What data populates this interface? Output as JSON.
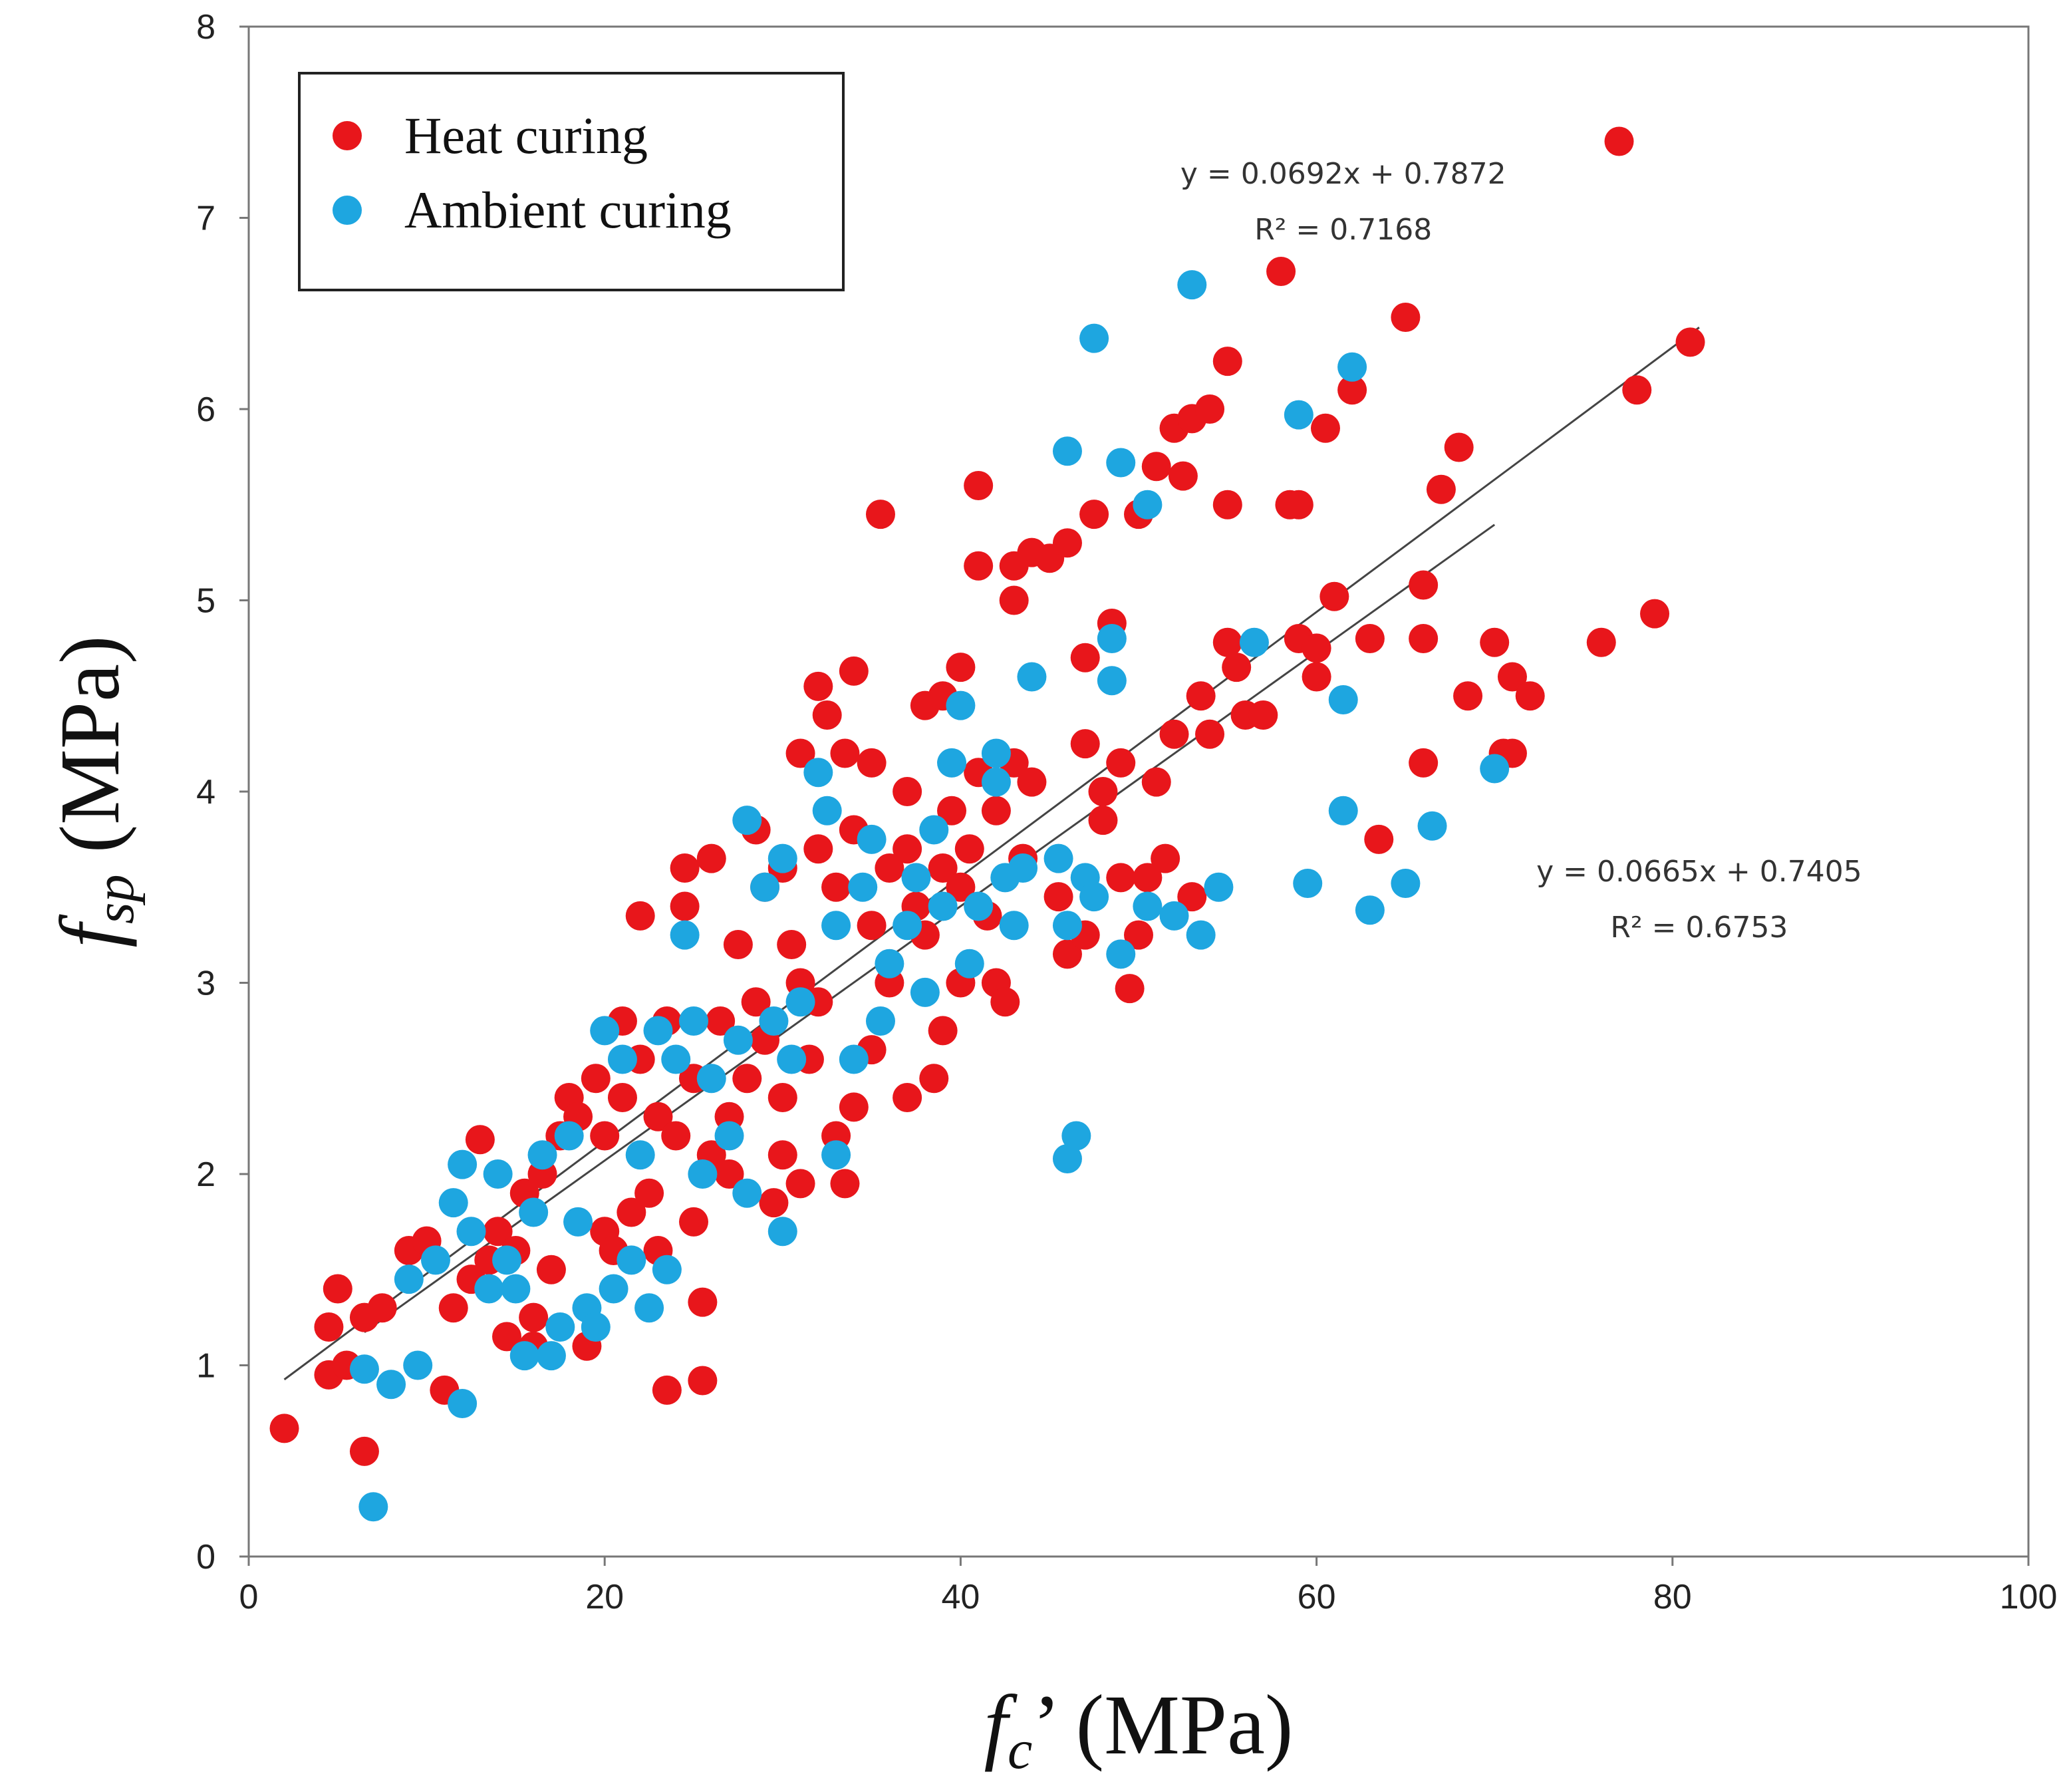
{
  "chart_data": {
    "type": "scatter",
    "xlabel": {
      "symbol": "f",
      "subscript": "c",
      "suffix": "’ (MPa)"
    },
    "ylabel": {
      "symbol": "f",
      "subscript": "sp",
      "suffix": " (MPa)"
    },
    "xlim": [
      0,
      100
    ],
    "ylim": [
      0,
      8
    ],
    "xticks": [
      0,
      20,
      40,
      60,
      80,
      100
    ],
    "yticks": [
      0,
      1,
      2,
      3,
      4,
      5,
      6,
      7,
      8
    ],
    "legend": {
      "position": "top-left",
      "entries": [
        "Heat curing",
        "Ambient curing"
      ]
    },
    "series": [
      {
        "name": "Heat curing",
        "color": "#e8161b",
        "points": [
          [
            2.0,
            0.67
          ],
          [
            4.5,
            0.95
          ],
          [
            4.5,
            1.2
          ],
          [
            5.0,
            1.4
          ],
          [
            5.5,
            1.0
          ],
          [
            6.5,
            0.55
          ],
          [
            6.5,
            1.25
          ],
          [
            7.5,
            1.3
          ],
          [
            9,
            1.6
          ],
          [
            10,
            1.65
          ],
          [
            11,
            0.87
          ],
          [
            11.5,
            1.3
          ],
          [
            12.5,
            1.45
          ],
          [
            13,
            2.18
          ],
          [
            13.5,
            1.55
          ],
          [
            14,
            1.7
          ],
          [
            14.5,
            1.15
          ],
          [
            15,
            1.6
          ],
          [
            15.5,
            1.9
          ],
          [
            16,
            1.25
          ],
          [
            16,
            1.1
          ],
          [
            16.5,
            2.0
          ],
          [
            17,
            1.5
          ],
          [
            17.5,
            2.2
          ],
          [
            18,
            2.4
          ],
          [
            18.5,
            2.3
          ],
          [
            19,
            1.1
          ],
          [
            19.5,
            2.5
          ],
          [
            20,
            1.7
          ],
          [
            20,
            2.2
          ],
          [
            20.5,
            1.6
          ],
          [
            21,
            2.4
          ],
          [
            21,
            2.8
          ],
          [
            21.5,
            1.8
          ],
          [
            22,
            3.35
          ],
          [
            22,
            2.6
          ],
          [
            22.5,
            1.9
          ],
          [
            23,
            1.6
          ],
          [
            23,
            2.3
          ],
          [
            23.5,
            0.87
          ],
          [
            23.5,
            2.8
          ],
          [
            24,
            2.2
          ],
          [
            24.5,
            3.6
          ],
          [
            24.5,
            3.4
          ],
          [
            25,
            1.75
          ],
          [
            25,
            2.5
          ],
          [
            25.5,
            0.92
          ],
          [
            25.5,
            1.33
          ],
          [
            26,
            3.65
          ],
          [
            26,
            2.1
          ],
          [
            26.5,
            2.8
          ],
          [
            27,
            2.3
          ],
          [
            27,
            2.0
          ],
          [
            27.5,
            3.2
          ],
          [
            28,
            2.5
          ],
          [
            28.5,
            3.8
          ],
          [
            28.5,
            2.9
          ],
          [
            29,
            3.5
          ],
          [
            29,
            2.7
          ],
          [
            29.5,
            1.85
          ],
          [
            30,
            3.6
          ],
          [
            30,
            2.4
          ],
          [
            30,
            2.1
          ],
          [
            30.5,
            3.2
          ],
          [
            31,
            4.2
          ],
          [
            31,
            3.0
          ],
          [
            31,
            1.95
          ],
          [
            31.5,
            2.6
          ],
          [
            32,
            4.55
          ],
          [
            32,
            3.7
          ],
          [
            32,
            2.9
          ],
          [
            32.5,
            4.4
          ],
          [
            33,
            3.5
          ],
          [
            33,
            2.2
          ],
          [
            33.5,
            4.2
          ],
          [
            33.5,
            1.95
          ],
          [
            34,
            4.63
          ],
          [
            34,
            3.8
          ],
          [
            34,
            2.35
          ],
          [
            35,
            4.15
          ],
          [
            35,
            3.3
          ],
          [
            35,
            2.65
          ],
          [
            35.5,
            5.45
          ],
          [
            36,
            3.6
          ],
          [
            36,
            3.0
          ],
          [
            37,
            4.0
          ],
          [
            37,
            3.7
          ],
          [
            37,
            2.4
          ],
          [
            37.5,
            3.4
          ],
          [
            38,
            4.45
          ],
          [
            38,
            3.25
          ],
          [
            38.5,
            2.5
          ],
          [
            39,
            4.5
          ],
          [
            39,
            3.6
          ],
          [
            39,
            2.75
          ],
          [
            39.5,
            3.9
          ],
          [
            40,
            4.65
          ],
          [
            40,
            3.5
          ],
          [
            40,
            3.0
          ],
          [
            40.5,
            3.7
          ],
          [
            41,
            5.6
          ],
          [
            41,
            5.18
          ],
          [
            41,
            4.1
          ],
          [
            41.5,
            3.35
          ],
          [
            42,
            3.9
          ],
          [
            42,
            3.0
          ],
          [
            42.5,
            2.9
          ],
          [
            43,
            5.0
          ],
          [
            43,
            5.18
          ],
          [
            43,
            4.15
          ],
          [
            43.5,
            3.65
          ],
          [
            44,
            4.05
          ],
          [
            44,
            5.25
          ],
          [
            45,
            5.22
          ],
          [
            45.5,
            3.45
          ],
          [
            46,
            5.3
          ],
          [
            46,
            3.15
          ],
          [
            47,
            4.7
          ],
          [
            47,
            4.25
          ],
          [
            47,
            3.25
          ],
          [
            47.5,
            5.45
          ],
          [
            48,
            3.85
          ],
          [
            48,
            4.0
          ],
          [
            48.5,
            4.88
          ],
          [
            49,
            4.15
          ],
          [
            49,
            3.55
          ],
          [
            49.5,
            2.97
          ],
          [
            50,
            5.45
          ],
          [
            50,
            3.25
          ],
          [
            50.5,
            3.55
          ],
          [
            51,
            5.7
          ],
          [
            51,
            4.05
          ],
          [
            51.5,
            3.65
          ],
          [
            52,
            5.9
          ],
          [
            52,
            4.3
          ],
          [
            52.5,
            5.65
          ],
          [
            53,
            5.95
          ],
          [
            53,
            3.45
          ],
          [
            53.5,
            4.5
          ],
          [
            54,
            6.0
          ],
          [
            54,
            4.3
          ],
          [
            55,
            6.25
          ],
          [
            55,
            5.5
          ],
          [
            55,
            4.78
          ],
          [
            55.5,
            4.65
          ],
          [
            56,
            4.4
          ],
          [
            57,
            4.4
          ],
          [
            58,
            6.72
          ],
          [
            58.5,
            5.5
          ],
          [
            59,
            5.5
          ],
          [
            59,
            4.8
          ],
          [
            60,
            4.75
          ],
          [
            60,
            4.6
          ],
          [
            60.5,
            5.9
          ],
          [
            61,
            5.02
          ],
          [
            62,
            6.1
          ],
          [
            63,
            4.8
          ],
          [
            63.5,
            3.75
          ],
          [
            65,
            6.48
          ],
          [
            66,
            5.08
          ],
          [
            66,
            4.8
          ],
          [
            66,
            4.15
          ],
          [
            67,
            5.58
          ],
          [
            68,
            5.8
          ],
          [
            68.5,
            4.5
          ],
          [
            70,
            4.78
          ],
          [
            70.5,
            4.2
          ],
          [
            71,
            4.6
          ],
          [
            71,
            4.2
          ],
          [
            72,
            4.5
          ],
          [
            76,
            4.78
          ],
          [
            77,
            7.4
          ],
          [
            78,
            6.1
          ],
          [
            79,
            4.93
          ],
          [
            81,
            6.35
          ]
        ]
      },
      {
        "name": "Ambient curing",
        "color": "#1ea6e0",
        "points": [
          [
            6.5,
            0.98
          ],
          [
            7,
            0.26
          ],
          [
            8,
            0.9
          ],
          [
            9,
            1.45
          ],
          [
            9.5,
            1.0
          ],
          [
            10.5,
            1.55
          ],
          [
            11.5,
            1.85
          ],
          [
            12,
            2.05
          ],
          [
            12,
            0.8
          ],
          [
            12.5,
            1.7
          ],
          [
            13.5,
            1.4
          ],
          [
            14,
            2.0
          ],
          [
            14.5,
            1.55
          ],
          [
            15,
            1.4
          ],
          [
            15.5,
            1.05
          ],
          [
            16,
            1.8
          ],
          [
            16.5,
            2.1
          ],
          [
            17,
            1.05
          ],
          [
            17.5,
            1.2
          ],
          [
            18,
            2.2
          ],
          [
            18.5,
            1.75
          ],
          [
            19,
            1.3
          ],
          [
            19.5,
            1.2
          ],
          [
            20,
            2.75
          ],
          [
            20.5,
            1.4
          ],
          [
            21,
            2.6
          ],
          [
            21.5,
            1.55
          ],
          [
            22,
            2.1
          ],
          [
            22.5,
            1.3
          ],
          [
            23,
            2.75
          ],
          [
            23.5,
            1.5
          ],
          [
            24,
            2.6
          ],
          [
            24.5,
            3.25
          ],
          [
            25,
            2.8
          ],
          [
            25.5,
            2.0
          ],
          [
            26,
            2.5
          ],
          [
            27,
            2.2
          ],
          [
            27.5,
            2.7
          ],
          [
            28,
            3.85
          ],
          [
            28,
            1.9
          ],
          [
            29,
            3.5
          ],
          [
            29.5,
            2.8
          ],
          [
            30,
            3.65
          ],
          [
            30,
            1.7
          ],
          [
            30.5,
            2.6
          ],
          [
            31,
            2.9
          ],
          [
            32,
            4.1
          ],
          [
            32.5,
            3.9
          ],
          [
            33,
            3.3
          ],
          [
            33,
            2.1
          ],
          [
            34,
            2.6
          ],
          [
            34.5,
            3.5
          ],
          [
            35,
            3.75
          ],
          [
            35.5,
            2.8
          ],
          [
            36,
            3.1
          ],
          [
            37,
            3.3
          ],
          [
            37.5,
            3.55
          ],
          [
            38,
            2.95
          ],
          [
            38.5,
            3.8
          ],
          [
            39,
            3.4
          ],
          [
            39.5,
            4.15
          ],
          [
            40,
            4.45
          ],
          [
            40.5,
            3.1
          ],
          [
            41,
            3.4
          ],
          [
            42,
            4.2
          ],
          [
            42,
            4.05
          ],
          [
            42.5,
            3.55
          ],
          [
            43,
            3.3
          ],
          [
            43.5,
            3.6
          ],
          [
            44,
            4.6
          ],
          [
            45.5,
            3.65
          ],
          [
            46,
            5.78
          ],
          [
            46,
            3.3
          ],
          [
            46,
            2.08
          ],
          [
            46.5,
            2.2
          ],
          [
            47,
            3.55
          ],
          [
            47.5,
            6.37
          ],
          [
            47.5,
            3.45
          ],
          [
            48.5,
            4.58
          ],
          [
            48.5,
            4.8
          ],
          [
            49,
            5.72
          ],
          [
            49,
            3.15
          ],
          [
            50.5,
            5.5
          ],
          [
            50.5,
            3.4
          ],
          [
            52,
            3.35
          ],
          [
            53,
            6.65
          ],
          [
            53.5,
            3.25
          ],
          [
            54.5,
            3.5
          ],
          [
            56.5,
            4.78
          ],
          [
            59,
            5.97
          ],
          [
            59.5,
            3.52
          ],
          [
            61.5,
            3.9
          ],
          [
            61.5,
            4.48
          ],
          [
            62,
            6.22
          ],
          [
            63,
            3.38
          ],
          [
            65,
            3.52
          ],
          [
            66.5,
            3.82
          ],
          [
            70,
            4.12
          ]
        ]
      }
    ],
    "trendlines": [
      {
        "label": "Heat curing fit",
        "slope": 0.0692,
        "intercept": 0.7872,
        "x_range": [
          2,
          81.5
        ],
        "equation": "y = 0.0692x + 0.7872",
        "r2": "R² = 0.7168",
        "anchor": [
          61.5,
          7.18
        ]
      },
      {
        "label": "Ambient curing fit",
        "slope": 0.0665,
        "intercept": 0.7405,
        "x_range": [
          6.5,
          70
        ],
        "equation": "y = 0.0665x + 0.7405",
        "r2": "R² = 0.6753",
        "anchor": [
          81.5,
          3.53
        ]
      }
    ]
  }
}
